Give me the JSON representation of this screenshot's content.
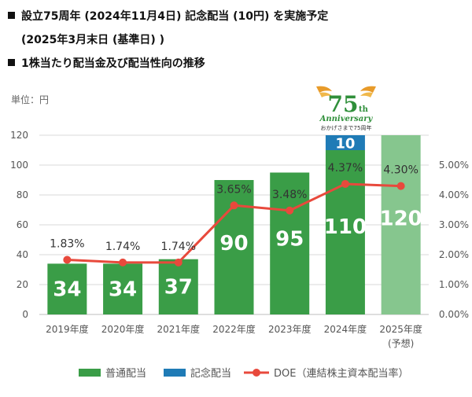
{
  "header": {
    "line1": "設立75周年 (2024年11月4日) 記念配当 (10円) を実施予定",
    "line2": "(2025年3月末日 (基準日) )",
    "line3": "1株当たり配当金及び配当性向の推移"
  },
  "unit_label": "単位：円",
  "badge": {
    "number": "75",
    "suffix": "th",
    "word": "Anniversary",
    "caption": "おかげさまで75周年"
  },
  "colors": {
    "ordinary": "#3a9d47",
    "ordinary_forecast": "#86c68e",
    "commemorative": "#1f7bb6",
    "doe": "#e8493c",
    "grid": "#d9d9d9"
  },
  "chart_data": {
    "type": "bar",
    "categories": [
      "2019年度",
      "2020年度",
      "2021年度",
      "2022年度",
      "2023年度",
      "2024年度",
      "2025年度"
    ],
    "category_notes": [
      "",
      "",
      "",
      "",
      "",
      "",
      "(予想)"
    ],
    "series": [
      {
        "name": "普通配当",
        "values": [
          34,
          34,
          37,
          90,
          95,
          110,
          120
        ]
      },
      {
        "name": "記念配当",
        "values": [
          0,
          0,
          0,
          0,
          0,
          10,
          0
        ]
      }
    ],
    "line_series": {
      "name": "DOE（連結株主資本配当率）",
      "values": [
        1.83,
        1.74,
        1.74,
        3.65,
        3.48,
        4.37,
        4.3
      ],
      "labels": [
        "1.83%",
        "1.74%",
        "1.74%",
        "3.65%",
        "3.48%",
        "4.37%",
        "4.30%"
      ]
    },
    "bar_labels": [
      "34",
      "34",
      "37",
      "90",
      "95",
      "110",
      "120"
    ],
    "commemorative_labels": [
      "",
      "",
      "",
      "",
      "",
      "10",
      ""
    ],
    "forecast": [
      false,
      false,
      false,
      false,
      false,
      false,
      true
    ],
    "ylim": [
      0,
      120
    ],
    "yticks": [
      "0",
      "20",
      "40",
      "60",
      "80",
      "100",
      "120"
    ],
    "y2lim": [
      0,
      6
    ],
    "y2ticks": [
      "0.00%",
      "1.00%",
      "2.00%",
      "3.00%",
      "4.00%",
      "5.00%"
    ],
    "legend_position": "bottom",
    "grid": true
  }
}
